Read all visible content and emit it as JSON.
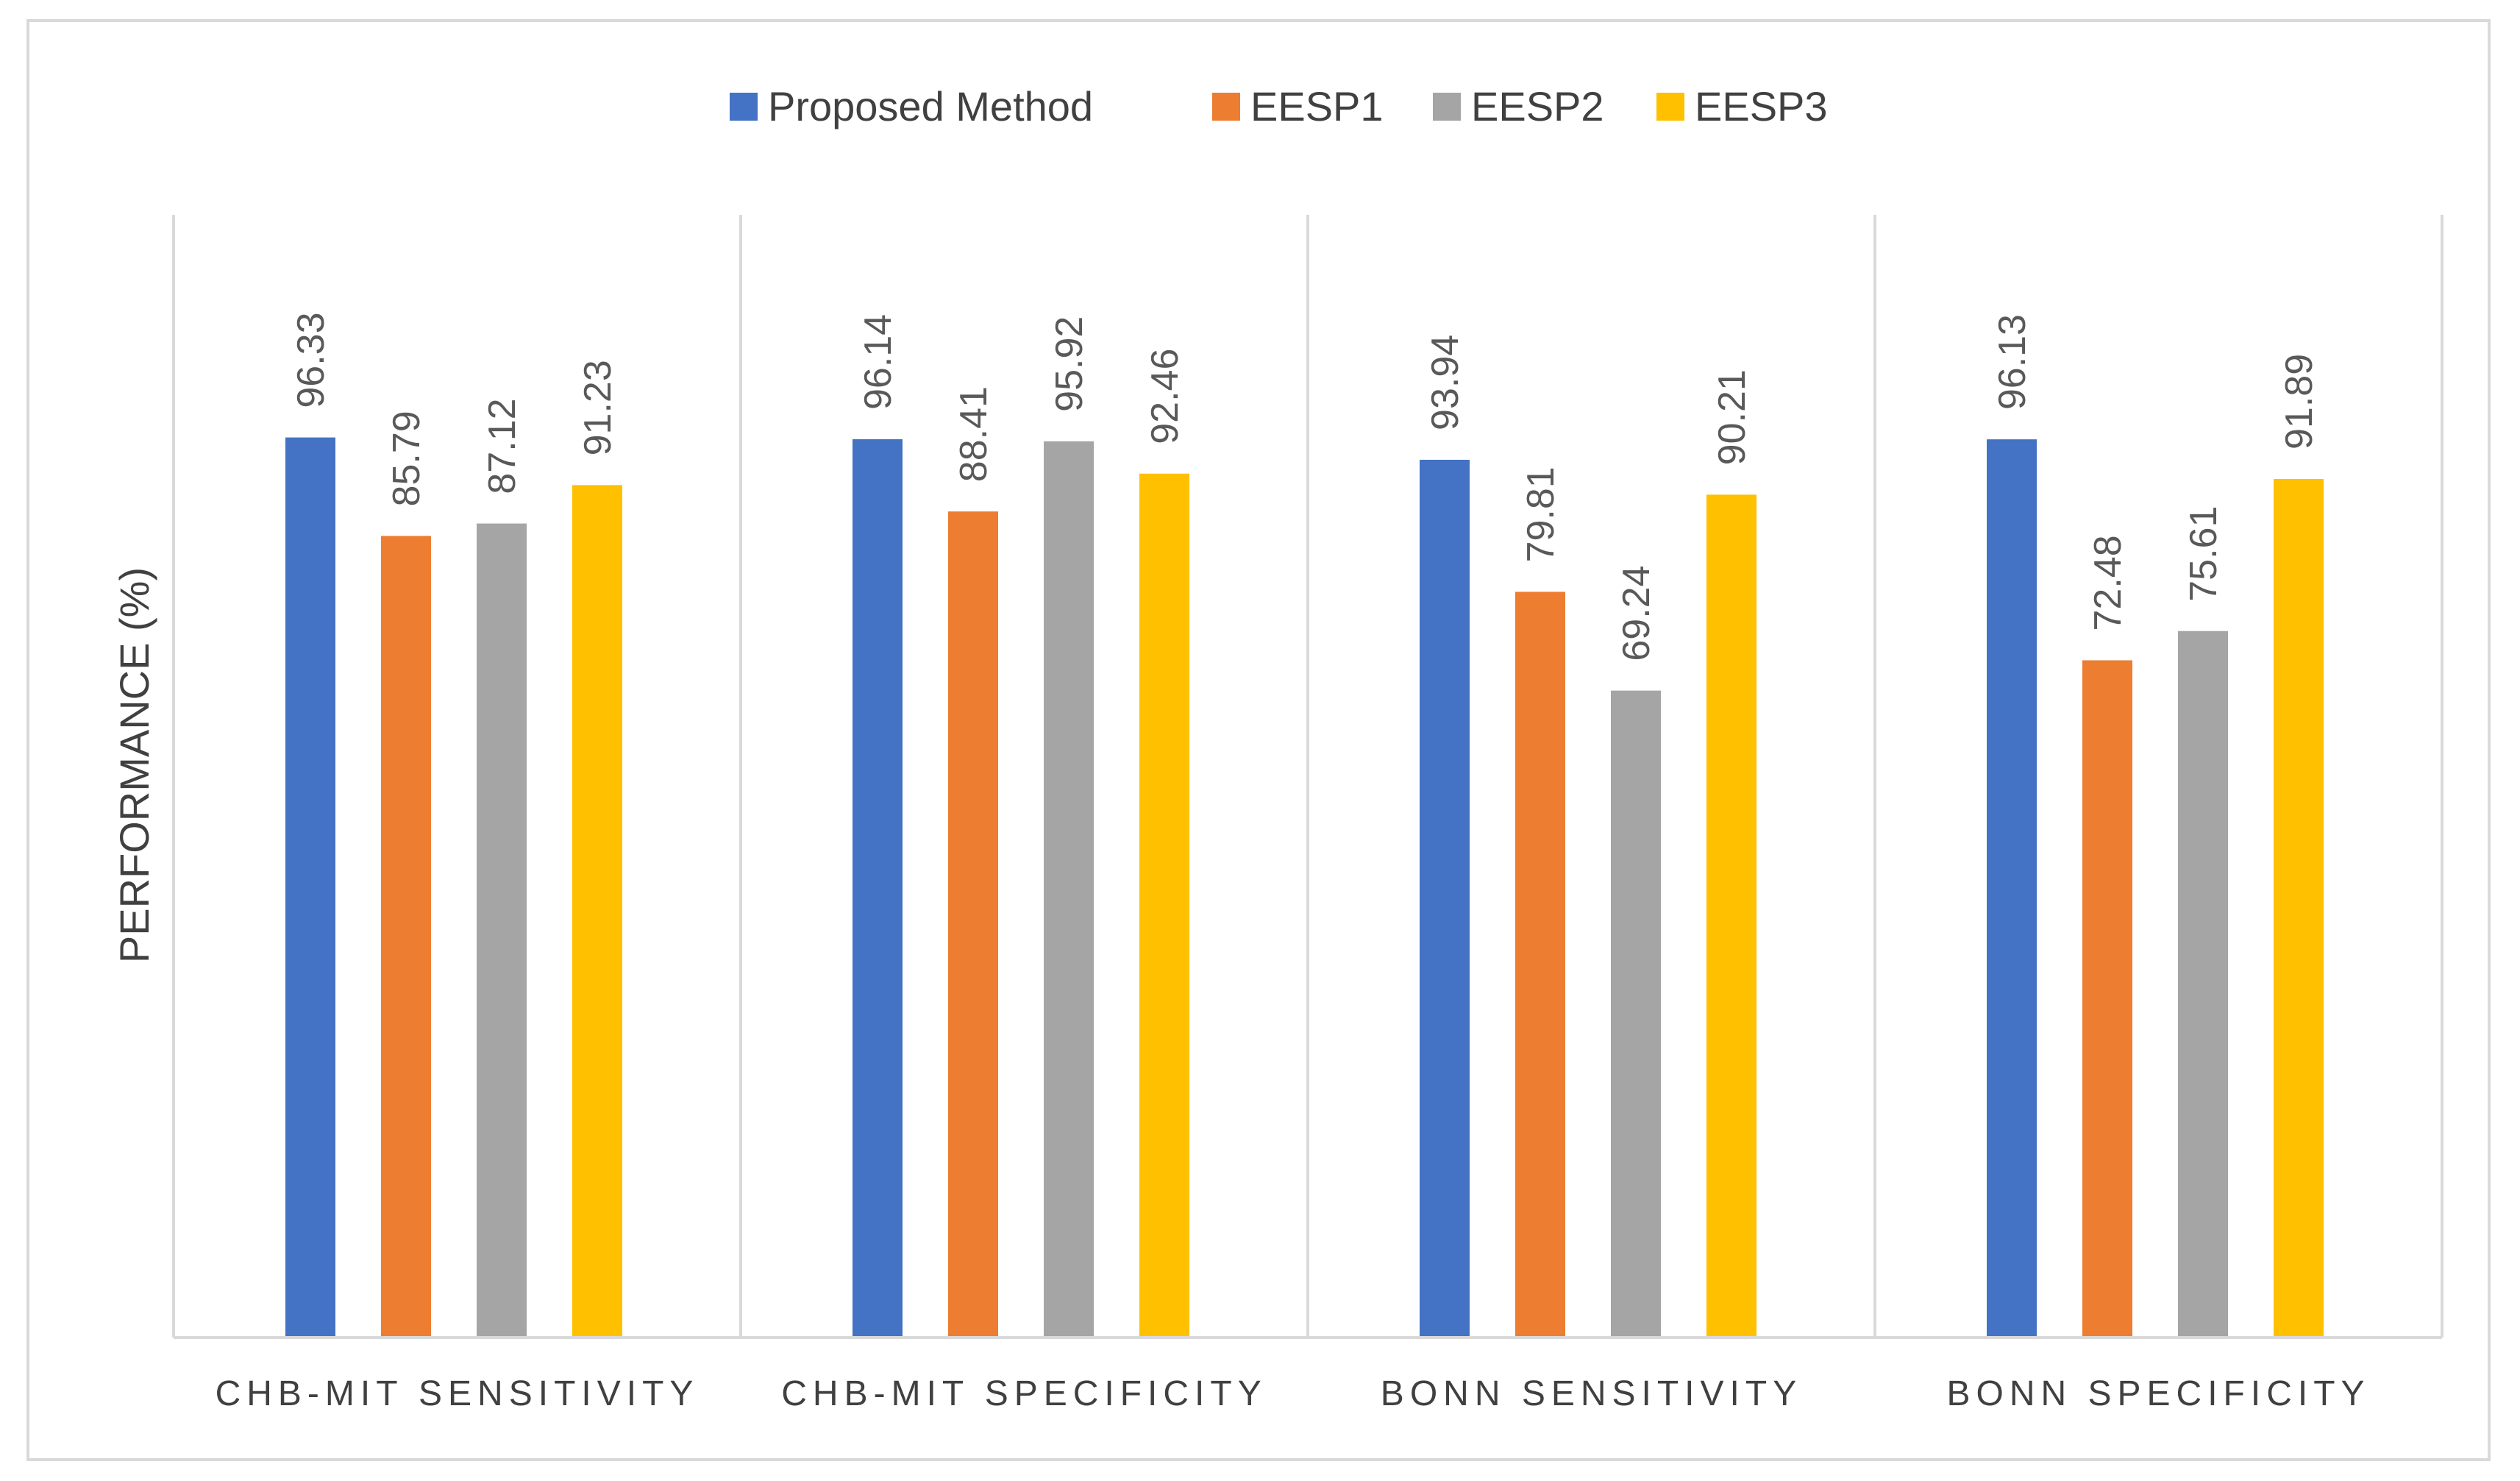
{
  "chart_data": {
    "type": "bar",
    "title": "",
    "xlabel": "",
    "ylabel": "PERFORMANCE (%)",
    "ylim": [
      0,
      100
    ],
    "grid": false,
    "legend_position": "top",
    "categories": [
      "CHB-MIT SENSITIVITY",
      "CHB-MIT SPECIFICITY",
      "BONN SENSITIVITY",
      "BONN SPECIFICITY"
    ],
    "series": [
      {
        "name": "Proposed Method",
        "color": "#4472C4",
        "values": [
          96.33,
          96.14,
          93.94,
          96.13
        ]
      },
      {
        "name": "EESP1",
        "color": "#ED7D31",
        "values": [
          85.79,
          88.41,
          79.81,
          72.48
        ]
      },
      {
        "name": "EESP2",
        "color": "#A5A5A5",
        "values": [
          87.12,
          95.92,
          69.24,
          75.61
        ]
      },
      {
        "name": "EESP3",
        "color": "#FFC000",
        "values": [
          91.23,
          92.46,
          90.21,
          91.89
        ]
      }
    ],
    "value_labels": [
      [
        "96.33",
        "96.14",
        "93.94",
        "96.13"
      ],
      [
        "85.79",
        "88.41",
        "79.81",
        "72.48"
      ],
      [
        "87.12",
        "95.92",
        "69.24",
        "75.61"
      ],
      [
        "91.23",
        "92.46",
        "90.21",
        "91.89"
      ]
    ]
  }
}
